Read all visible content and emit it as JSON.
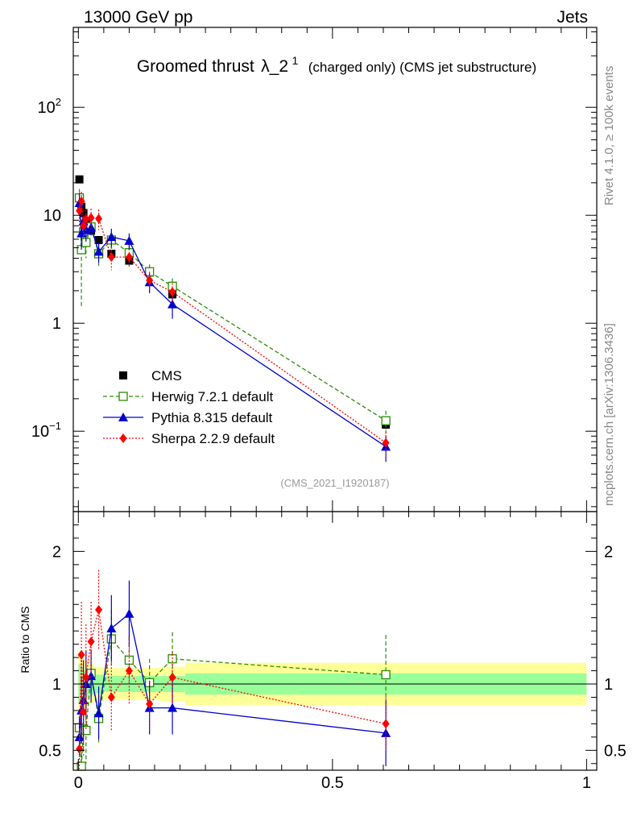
{
  "header": {
    "left": "13000 GeV pp",
    "right": "Jets"
  },
  "chart_data": {
    "type": "scatter",
    "title_main": "Groomed thrust",
    "title_symbol": "λ_2",
    "title_superscript": "1",
    "title_rest": "(charged only) (CMS jet substructure)",
    "analysis_id": "(CMS_2021_I1920187)",
    "side_label_top": "Rivet 4.1.0, ≥ 100k events",
    "side_label_bottom": "mcplots.cern.ch [arXiv:1306.3436]",
    "ratio_ylabel": "Ratio to CMS",
    "xlim": [
      -0.01,
      1.02
    ],
    "x_ticks": [
      {
        "value": 0,
        "label": "0"
      },
      {
        "value": 0.5,
        "label": "0.5"
      },
      {
        "value": 1,
        "label": "1"
      }
    ],
    "main_ylim": [
      0.018,
      550
    ],
    "main_y_ticks": [
      {
        "value": 0.1,
        "base": "10",
        "exp": "−1"
      },
      {
        "value": 1,
        "base": "1",
        "exp": ""
      },
      {
        "value": 10,
        "base": "10",
        "exp": ""
      },
      {
        "value": 100,
        "base": "10",
        "exp": "2"
      }
    ],
    "ratio_ylim": [
      0.35,
      2.3
    ],
    "ratio_y_ticks": [
      {
        "value": 0.5,
        "label": "0.5"
      },
      {
        "value": 1,
        "label": "1"
      },
      {
        "value": 2,
        "label": "2"
      }
    ],
    "data_x": [
      0.002,
      0.006,
      0.01,
      0.015,
      0.025,
      0.04,
      0.065,
      0.1,
      0.14,
      0.185,
      0.605
    ],
    "band": {
      "edges": [
        0,
        0.005,
        0.01,
        0.02,
        0.03,
        0.05,
        0.08,
        0.12,
        0.16,
        0.21,
        1.0
      ],
      "inner": [
        0.15,
        0.12,
        0.1,
        0.08,
        0.07,
        0.06,
        0.06,
        0.06,
        0.06,
        0.08,
        0.08
      ],
      "outer": [
        0.25,
        0.2,
        0.18,
        0.15,
        0.13,
        0.12,
        0.12,
        0.12,
        0.13,
        0.16,
        0.16
      ]
    },
    "series": [
      {
        "name": "CMS",
        "color": "#000000",
        "marker": "square-filled",
        "line": "none",
        "values": [
          21.5,
          12.0,
          10.5,
          8.8,
          7.2,
          5.9,
          4.4,
          3.8,
          2.95,
          1.85,
          0.115
        ],
        "errors": [
          1.2,
          0.7,
          0.6,
          0.5,
          0.4,
          0.3,
          0.25,
          0.2,
          0.15,
          0.12,
          0.01
        ],
        "ratio": [
          1,
          1,
          1,
          1,
          1,
          1,
          1,
          1,
          1,
          1,
          1
        ],
        "ratio_errors": [
          0.05,
          0.05,
          0.05,
          0.05,
          0.05,
          0.05,
          0.05,
          0.05,
          0.05,
          0.06,
          0.08
        ]
      },
      {
        "name": "Herwig 7.2.1 default",
        "color": "#2a8c00",
        "marker": "square-open",
        "line": "dashed",
        "values": [
          14.5,
          4.8,
          7.0,
          5.6,
          7.8,
          4.4,
          5.9,
          4.5,
          3.0,
          2.2,
          0.125
        ],
        "errors": [
          3.0,
          3.4,
          2.0,
          1.6,
          1.0,
          1.0,
          1.0,
          0.8,
          0.5,
          0.4,
          0.03
        ],
        "ratio": [
          0.67,
          0.38,
          0.66,
          0.65,
          1.08,
          0.74,
          1.34,
          1.18,
          1.01,
          1.19,
          1.07
        ],
        "ratio_errors": [
          0.14,
          0.25,
          0.2,
          0.25,
          0.18,
          0.18,
          0.22,
          0.18,
          0.18,
          0.2,
          0.3
        ]
      },
      {
        "name": "Pythia 8.315 default",
        "color": "#0000cc",
        "marker": "triangle-filled",
        "line": "solid",
        "values": [
          13.0,
          6.8,
          8.8,
          7.3,
          7.7,
          4.6,
          6.3,
          5.8,
          2.4,
          1.5,
          0.072
        ],
        "errors": [
          3.0,
          2.0,
          2.2,
          1.6,
          1.2,
          1.0,
          1.2,
          1.0,
          0.5,
          0.4,
          0.02
        ],
        "ratio": [
          0.6,
          0.8,
          0.88,
          1.0,
          1.06,
          0.78,
          1.42,
          1.53,
          0.82,
          0.82,
          0.63
        ],
        "ratio_errors": [
          0.15,
          0.25,
          0.3,
          0.25,
          0.2,
          0.2,
          0.25,
          0.25,
          0.2,
          0.2,
          0.25
        ]
      },
      {
        "name": "Sherpa 2.2.9 default",
        "color": "#ff0000",
        "marker": "diamond-filled",
        "line": "dotted",
        "values": [
          11.0,
          13.5,
          8.0,
          9.2,
          9.5,
          9.3,
          4.1,
          4.1,
          2.5,
          1.95,
          0.078
        ],
        "errors": [
          2.5,
          3.0,
          2.0,
          2.0,
          2.0,
          2.0,
          1.0,
          0.8,
          0.5,
          0.4,
          0.02
        ],
        "ratio": [
          0.51,
          1.22,
          0.79,
          1.05,
          1.32,
          1.56,
          0.9,
          1.1,
          0.85,
          1.05,
          0.7
        ],
        "ratio_errors": [
          0.15,
          0.4,
          0.3,
          0.4,
          0.3,
          0.3,
          0.25,
          0.25,
          0.2,
          0.2,
          0.2
        ]
      }
    ]
  }
}
